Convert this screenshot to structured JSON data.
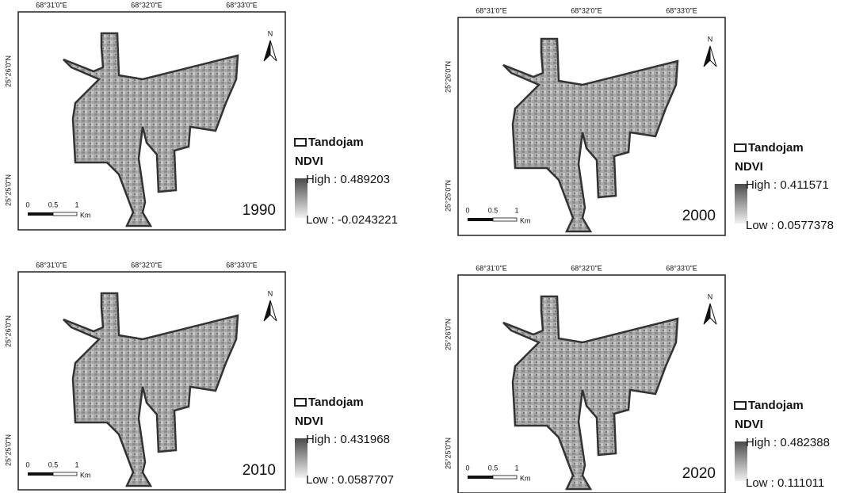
{
  "panels": [
    {
      "top_ticks": [
        "68°31'0\"E",
        "68°32'0\"E",
        "68°33'0\"E"
      ],
      "left_ticks": [
        "25°26'0\"N",
        "25°25'0\"N"
      ],
      "north": "N",
      "scale": [
        "0",
        "0.5",
        "1",
        "Km"
      ],
      "year": "1990",
      "legend": {
        "boundary": "Tandojam",
        "index": "NDVI",
        "high": "High : 0.489203",
        "low": "Low : -0.0243221"
      }
    },
    {
      "top_ticks": [
        "68°31'0\"E",
        "68°32'0\"E",
        "68°33'0\"E"
      ],
      "left_ticks": [
        "25°26'0\"N",
        "25°25'0\"N"
      ],
      "north": "N",
      "scale": [
        "0",
        "0.5",
        "1",
        "Km"
      ],
      "year": "2000",
      "legend": {
        "boundary": "Tandojam",
        "index": "NDVI",
        "high": "High : 0.411571",
        "low": "Low : 0.0577378"
      }
    },
    {
      "top_ticks": [
        "68°31'0\"E",
        "68°32'0\"E",
        "68°33'0\"E"
      ],
      "left_ticks": [
        "25°26'0\"N",
        "25°25'0\"N"
      ],
      "north": "N",
      "scale": [
        "0",
        "0.5",
        "1",
        "Km"
      ],
      "year": "2010",
      "legend": {
        "boundary": "Tandojam",
        "index": "NDVI",
        "high": "High : 0.431968",
        "low": "Low : 0.0587707"
      }
    },
    {
      "top_ticks": [
        "68°31'0\"E",
        "68°32'0\"E",
        "68°33'0\"E"
      ],
      "left_ticks": [
        "25°26'0\"N",
        "25°25'0\"N"
      ],
      "north": "N",
      "scale": [
        "0",
        "0.5",
        "1",
        "Km"
      ],
      "year": "2020",
      "legend": {
        "boundary": "Tandojam",
        "index": "NDVI",
        "high": "High : 0.482388",
        "low": "Low : 0.111011"
      }
    }
  ]
}
